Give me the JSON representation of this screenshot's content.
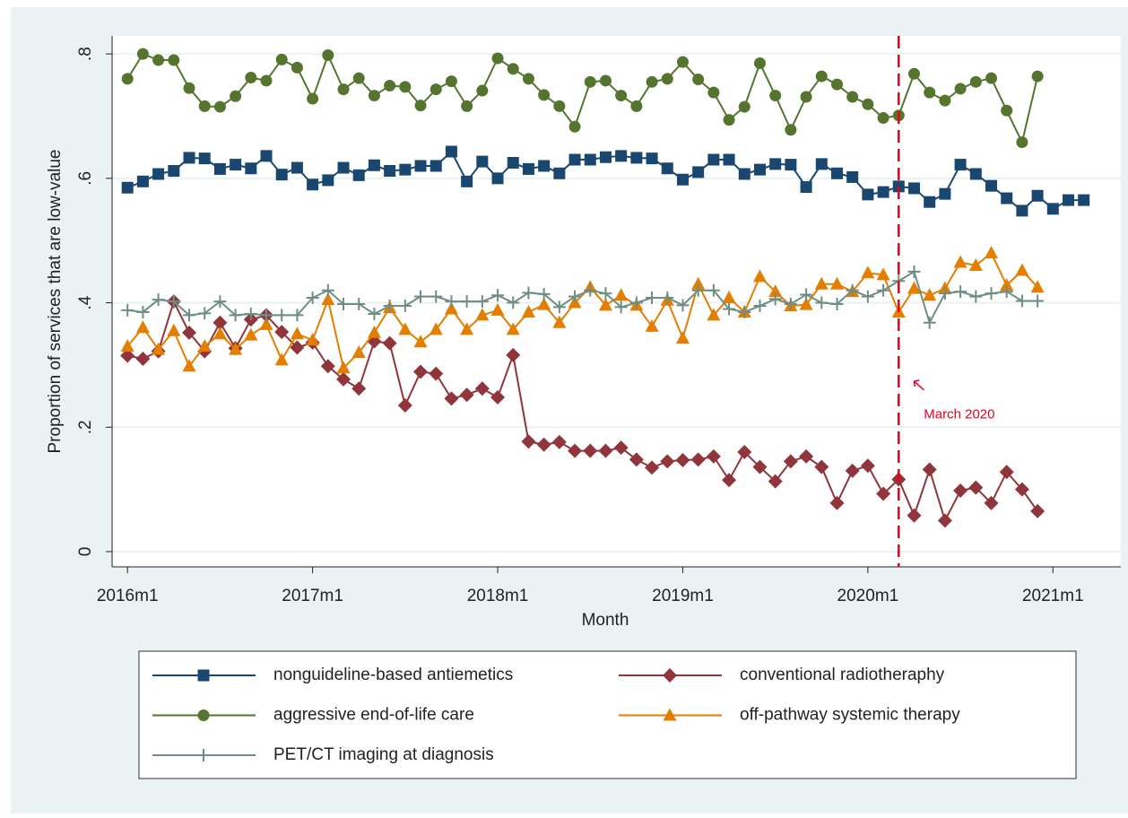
{
  "chart_data": {
    "type": "line",
    "x_label": "Month",
    "y_label": "Proportion of services that are low-value",
    "x": [
      672,
      673,
      674,
      675,
      676,
      677,
      678,
      679,
      680,
      681,
      682,
      683,
      684,
      685,
      686,
      687,
      688,
      689,
      690,
      691,
      692,
      693,
      694,
      695,
      696,
      697,
      698,
      699,
      700,
      701,
      702,
      703,
      704,
      705,
      706,
      707,
      708,
      709,
      710,
      711,
      712,
      713,
      714,
      715,
      716,
      717,
      718,
      719,
      720,
      721,
      722,
      723,
      724,
      725,
      726,
      727,
      728,
      729,
      730,
      731,
      732,
      733,
      734
    ],
    "xlim": [
      671,
      736.4
    ],
    "xticks": [
      {
        "value": 672,
        "label": "2016m1"
      },
      {
        "value": 684,
        "label": "2017m1"
      },
      {
        "value": 696,
        "label": "2018m1"
      },
      {
        "value": 708,
        "label": "2019m1"
      },
      {
        "value": 720,
        "label": "2020m1"
      },
      {
        "value": 732,
        "label": "2021m1"
      }
    ],
    "ylim": [
      -0.0245,
      0.829
    ],
    "yticks": [
      0,
      {
        "value": 0.2,
        "label": ".2"
      },
      {
        "value": 0.4,
        "label": ".4"
      },
      {
        "value": 0.6,
        "label": ".6"
      },
      {
        "value": 0.8,
        "label": ".8"
      }
    ],
    "grid": true,
    "vline": {
      "x": 722,
      "color": "#e8001c"
    },
    "annotation": "March 2020",
    "series": [
      {
        "name": "nonguideline-based antiemetics",
        "color": "#1a476f",
        "marker": "square",
        "values": [
          0.585,
          0.595,
          0.607,
          0.612,
          0.633,
          0.632,
          0.615,
          0.622,
          0.616,
          0.636,
          0.606,
          0.617,
          0.59,
          0.597,
          0.617,
          0.605,
          0.621,
          0.612,
          0.614,
          0.62,
          0.62,
          0.643,
          0.595,
          0.627,
          0.6,
          0.625,
          0.615,
          0.62,
          0.608,
          0.63,
          0.63,
          0.634,
          0.636,
          0.633,
          0.632,
          0.616,
          0.598,
          0.61,
          0.63,
          0.63,
          0.607,
          0.614,
          0.623,
          0.622,
          0.586,
          0.623,
          0.608,
          0.602,
          0.574,
          0.578,
          0.587,
          0.584,
          0.562,
          0.575,
          0.622,
          0.607,
          0.588,
          0.568,
          0.548,
          0.572,
          0.551,
          0.565,
          0.565
        ]
      },
      {
        "name": "conventional radiotheraphy",
        "color": "#90353b",
        "marker": "diamond",
        "values": [
          0.315,
          0.31,
          0.322,
          0.402,
          0.352,
          0.322,
          0.368,
          0.327,
          0.373,
          0.38,
          0.353,
          0.328,
          0.336,
          0.298,
          0.277,
          0.262,
          0.338,
          0.335,
          0.235,
          0.289,
          0.286,
          0.246,
          0.252,
          0.262,
          0.248,
          0.316,
          0.177,
          0.172,
          0.176,
          0.162,
          0.162,
          0.162,
          0.167,
          0.148,
          0.135,
          0.145,
          0.147,
          0.148,
          0.153,
          0.115,
          0.16,
          0.136,
          0.113,
          0.145,
          0.153,
          0.136,
          0.078,
          0.13,
          0.138,
          0.093,
          0.116,
          0.058,
          0.132,
          0.05,
          0.098,
          0.103,
          0.078,
          0.128,
          0.1,
          0.065,
          null,
          null,
          null
        ]
      },
      {
        "name": "aggressive end-of-life care",
        "color": "#55752f",
        "marker": "circle",
        "values": [
          0.76,
          0.8,
          0.79,
          0.79,
          0.745,
          0.716,
          0.715,
          0.732,
          0.762,
          0.757,
          0.791,
          0.778,
          0.728,
          0.798,
          0.743,
          0.761,
          0.733,
          0.749,
          0.747,
          0.717,
          0.743,
          0.756,
          0.716,
          0.741,
          0.793,
          0.776,
          0.76,
          0.734,
          0.716,
          0.683,
          0.755,
          0.757,
          0.733,
          0.716,
          0.755,
          0.76,
          0.787,
          0.759,
          0.738,
          0.694,
          0.715,
          0.785,
          0.733,
          0.678,
          0.731,
          0.764,
          0.751,
          0.731,
          0.719,
          0.697,
          0.701,
          0.768,
          0.738,
          0.725,
          0.744,
          0.755,
          0.761,
          0.709,
          0.658,
          0.764,
          null,
          null,
          null
        ]
      },
      {
        "name": "off-pathway systemic therapy",
        "color": "#e37e00",
        "marker": "triangle",
        "values": [
          0.33,
          0.36,
          0.325,
          0.355,
          0.298,
          0.33,
          0.35,
          0.325,
          0.348,
          0.365,
          0.308,
          0.35,
          0.34,
          0.405,
          0.295,
          0.32,
          0.352,
          0.392,
          0.357,
          0.337,
          0.357,
          0.39,
          0.357,
          0.38,
          0.388,
          0.357,
          0.385,
          0.397,
          0.368,
          0.4,
          0.425,
          0.396,
          0.412,
          0.396,
          0.362,
          0.404,
          0.343,
          0.43,
          0.38,
          0.408,
          0.385,
          0.442,
          0.418,
          0.395,
          0.397,
          0.43,
          0.43,
          0.418,
          0.448,
          0.445,
          0.385,
          0.423,
          0.412,
          0.423,
          0.465,
          0.46,
          0.48,
          0.428,
          0.452,
          0.425,
          null,
          null,
          null
        ]
      },
      {
        "name": "PET/CT imaging at diagnosis",
        "color": "#6e8e84",
        "marker": "plus",
        "values": [
          0.388,
          0.385,
          0.405,
          0.402,
          0.38,
          0.383,
          0.402,
          0.38,
          0.382,
          0.38,
          0.38,
          0.38,
          0.408,
          0.42,
          0.398,
          0.398,
          0.382,
          0.395,
          0.395,
          0.41,
          0.41,
          0.402,
          0.402,
          0.402,
          0.412,
          0.4,
          0.416,
          0.414,
          0.393,
          0.41,
          0.42,
          0.415,
          0.393,
          0.4,
          0.408,
          0.408,
          0.396,
          0.42,
          0.42,
          0.39,
          0.385,
          0.395,
          0.406,
          0.398,
          0.413,
          0.4,
          0.398,
          0.42,
          0.41,
          0.42,
          0.435,
          0.45,
          0.368,
          0.415,
          0.418,
          0.41,
          0.415,
          0.418,
          0.403,
          0.403,
          null,
          null,
          null
        ]
      }
    ]
  }
}
